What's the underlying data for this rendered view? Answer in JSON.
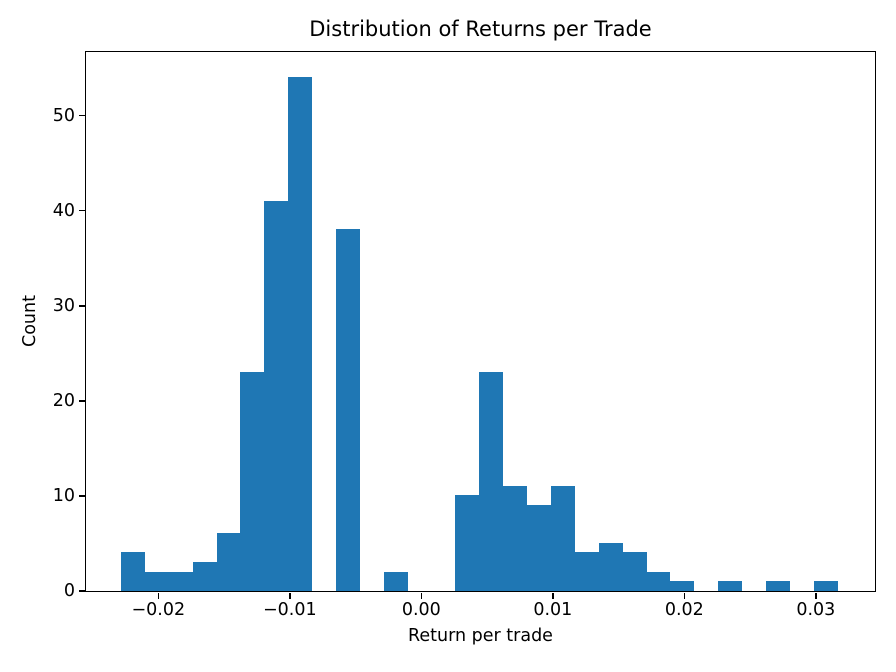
{
  "chart_data": {
    "type": "bar",
    "subtype": "histogram",
    "title": "Distribution of Returns per Trade",
    "xlabel": "Return per trade",
    "ylabel": "Count",
    "bar_color": "#1f77b4",
    "axis_color": "#000000",
    "background_color": "#ffffff",
    "grid": false,
    "legend": false,
    "bin_start": -0.0228,
    "bin_width": 0.0018167,
    "counts": [
      4,
      2,
      2,
      3,
      6,
      23,
      41,
      54,
      0,
      38,
      0,
      2,
      0,
      0,
      10,
      23,
      11,
      9,
      11,
      4,
      5,
      4,
      2,
      1,
      0,
      1,
      0,
      1,
      0,
      1
    ],
    "xlim": [
      -0.0255,
      0.0345
    ],
    "ylim": [
      0,
      56.7
    ],
    "xticks": [
      {
        "value": -0.02,
        "label": "−0.02"
      },
      {
        "value": -0.01,
        "label": "−0.01"
      },
      {
        "value": 0.0,
        "label": "0.00"
      },
      {
        "value": 0.01,
        "label": "0.01"
      },
      {
        "value": 0.02,
        "label": "0.02"
      },
      {
        "value": 0.03,
        "label": "0.03"
      }
    ],
    "yticks": [
      {
        "value": 0,
        "label": "0"
      },
      {
        "value": 10,
        "label": "10"
      },
      {
        "value": 20,
        "label": "20"
      },
      {
        "value": 30,
        "label": "30"
      },
      {
        "value": 40,
        "label": "40"
      },
      {
        "value": 50,
        "label": "50"
      }
    ]
  }
}
